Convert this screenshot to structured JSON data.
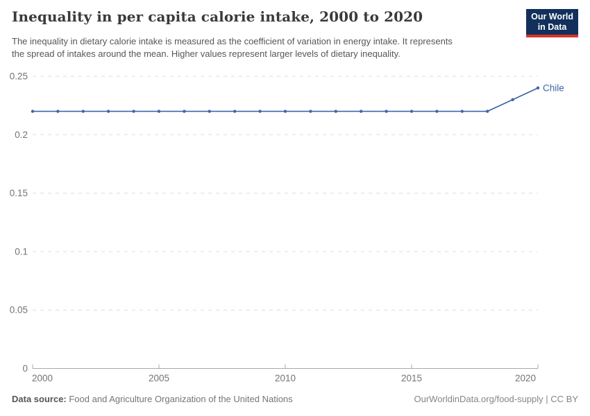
{
  "header": {
    "title": "Inequality in per capita calorie intake, 2000 to 2020",
    "subtitle_line1": "The inequality in dietary calorie intake is measured as the coefficient of variation in energy intake. It represents",
    "subtitle_line2": "the spread of intakes around the mean. Higher values represent larger levels of dietary inequality."
  },
  "logo": {
    "line1": "Our World",
    "line2": "in Data",
    "bg_color": "#12305B",
    "accent_color": "#D8352B"
  },
  "chart_data": {
    "type": "line",
    "title": "Inequality in per capita calorie intake, 2000 to 2020",
    "x": [
      2000,
      2001,
      2002,
      2003,
      2004,
      2005,
      2006,
      2007,
      2008,
      2009,
      2010,
      2011,
      2012,
      2013,
      2014,
      2015,
      2016,
      2017,
      2018,
      2019,
      2020
    ],
    "series": [
      {
        "name": "Chile",
        "color": "#3D64A8",
        "values": [
          0.22,
          0.22,
          0.22,
          0.22,
          0.22,
          0.22,
          0.22,
          0.22,
          0.22,
          0.22,
          0.22,
          0.22,
          0.22,
          0.22,
          0.22,
          0.22,
          0.22,
          0.22,
          0.22,
          0.23,
          0.24
        ]
      }
    ],
    "xlabel": "",
    "ylabel": "",
    "ylim": [
      0,
      0.25
    ],
    "ytick_values": [
      0,
      0.05,
      0.1,
      0.15,
      0.2,
      0.25
    ],
    "ytick_labels": [
      "0",
      "0.05",
      "0.1",
      "0.15",
      "0.2",
      "0.25"
    ],
    "xtick_values": [
      2000,
      2005,
      2010,
      2015,
      2020
    ],
    "xtick_labels": [
      "2000",
      "2005",
      "2010",
      "2015",
      "2020"
    ],
    "grid": "horizontal-dashed",
    "legend_position": "end-of-line",
    "gridline_color": "#DDDDDD",
    "axis_color": "#A8A8A8",
    "tick_label_color": "#737373"
  },
  "footer": {
    "datasource_label": "Data source:",
    "datasource_value": " Food and Agriculture Organization of the United Nations",
    "credit": "OurWorldinData.org/food-supply | CC BY"
  }
}
